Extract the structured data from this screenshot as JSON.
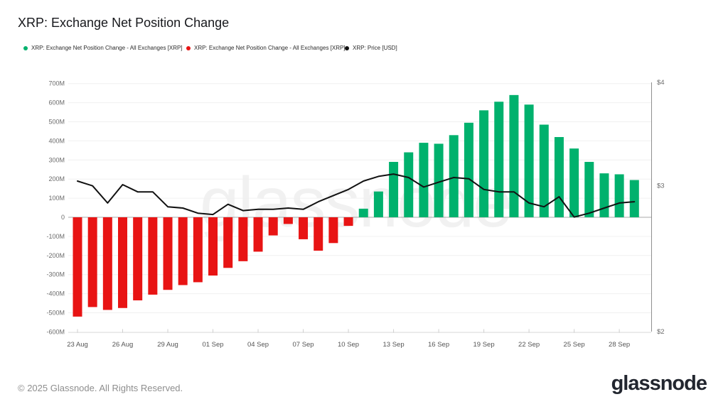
{
  "title": "XRP: Exchange Net Position Change",
  "legend": {
    "items": [
      {
        "label": "XRP: Exchange Net Position Change - All Exchanges [XRP]",
        "color": "#00b16d"
      },
      {
        "label": "XRP: Exchange Net Position Change - All Exchanges [XRP]",
        "color": "#e81414"
      },
      {
        "label": "XRP: Price [USD]",
        "color": "#111111"
      }
    ]
  },
  "watermark": "glassnode",
  "footer": {
    "copyright": "© 2025 Glassnode. All Rights Reserved.",
    "logo": "glassnode"
  },
  "chart_data": {
    "type": "bar",
    "subtype": "bar+line combo, daily",
    "title": "XRP: Exchange Net Position Change",
    "categories": [
      "23 Aug",
      "24 Aug",
      "25 Aug",
      "26 Aug",
      "27 Aug",
      "28 Aug",
      "29 Aug",
      "30 Aug",
      "31 Aug",
      "01 Sep",
      "02 Sep",
      "03 Sep",
      "04 Sep",
      "05 Sep",
      "06 Sep",
      "07 Sep",
      "08 Sep",
      "09 Sep",
      "10 Sep",
      "11 Sep",
      "12 Sep",
      "13 Sep",
      "14 Sep",
      "15 Sep",
      "16 Sep",
      "17 Sep",
      "18 Sep",
      "19 Sep",
      "20 Sep",
      "21 Sep",
      "22 Sep",
      "23 Sep",
      "24 Sep",
      "25 Sep",
      "26 Sep",
      "27 Sep",
      "28 Sep",
      "29 Sep"
    ],
    "bar_series": {
      "name": "XRP: Exchange Net Position Change - All Exchanges [XRP]",
      "unit": "XRP (millions)",
      "positive_color": "#00b16d",
      "negative_color": "#e81414",
      "values_m": [
        -520,
        -470,
        -485,
        -475,
        -435,
        -405,
        -380,
        -355,
        -340,
        -305,
        -265,
        -230,
        -180,
        -95,
        -35,
        -115,
        -175,
        -135,
        -45,
        45,
        135,
        290,
        340,
        390,
        385,
        430,
        495,
        560,
        605,
        640,
        590,
        485,
        420,
        360,
        290,
        230,
        225,
        195
      ]
    },
    "line_series": {
      "name": "XRP: Price [USD]",
      "color": "#111111",
      "axis": "right",
      "scale": "log",
      "values_usd": [
        3.04,
        3.0,
        2.86,
        3.01,
        2.95,
        2.95,
        2.83,
        2.82,
        2.78,
        2.77,
        2.85,
        2.8,
        2.81,
        2.81,
        2.82,
        2.81,
        2.87,
        2.92,
        2.97,
        3.04,
        3.08,
        3.1,
        3.07,
        2.99,
        3.03,
        3.07,
        3.06,
        2.97,
        2.95,
        2.95,
        2.86,
        2.83,
        2.91,
        2.75,
        2.78,
        2.82,
        2.86,
        2.87
      ]
    },
    "y_left": {
      "tick_labels": [
        "700M",
        "600M",
        "500M",
        "400M",
        "300M",
        "200M",
        "100M",
        "0",
        "-100M",
        "-200M",
        "-300M",
        "-400M",
        "-500M",
        "-600M"
      ],
      "tick_values": [
        700,
        600,
        500,
        400,
        300,
        200,
        100,
        0,
        -100,
        -200,
        -300,
        -400,
        -500,
        -600
      ],
      "min": -600,
      "max": 700,
      "grid": true
    },
    "y_right": {
      "tick_labels": [
        "$4",
        "$3",
        "$2"
      ],
      "tick_values": [
        4,
        3,
        2
      ],
      "min": 2,
      "max": 4,
      "scale": "log"
    },
    "x_tick_every": 3,
    "x_tick_labels": [
      "23 Aug",
      "26 Aug",
      "29 Aug",
      "01 Sep",
      "04 Sep",
      "07 Sep",
      "10 Sep",
      "13 Sep",
      "16 Sep",
      "19 Sep",
      "22 Sep",
      "25 Sep",
      "28 Sep"
    ],
    "legend_position": "top-left",
    "grid": "horizontal only"
  }
}
